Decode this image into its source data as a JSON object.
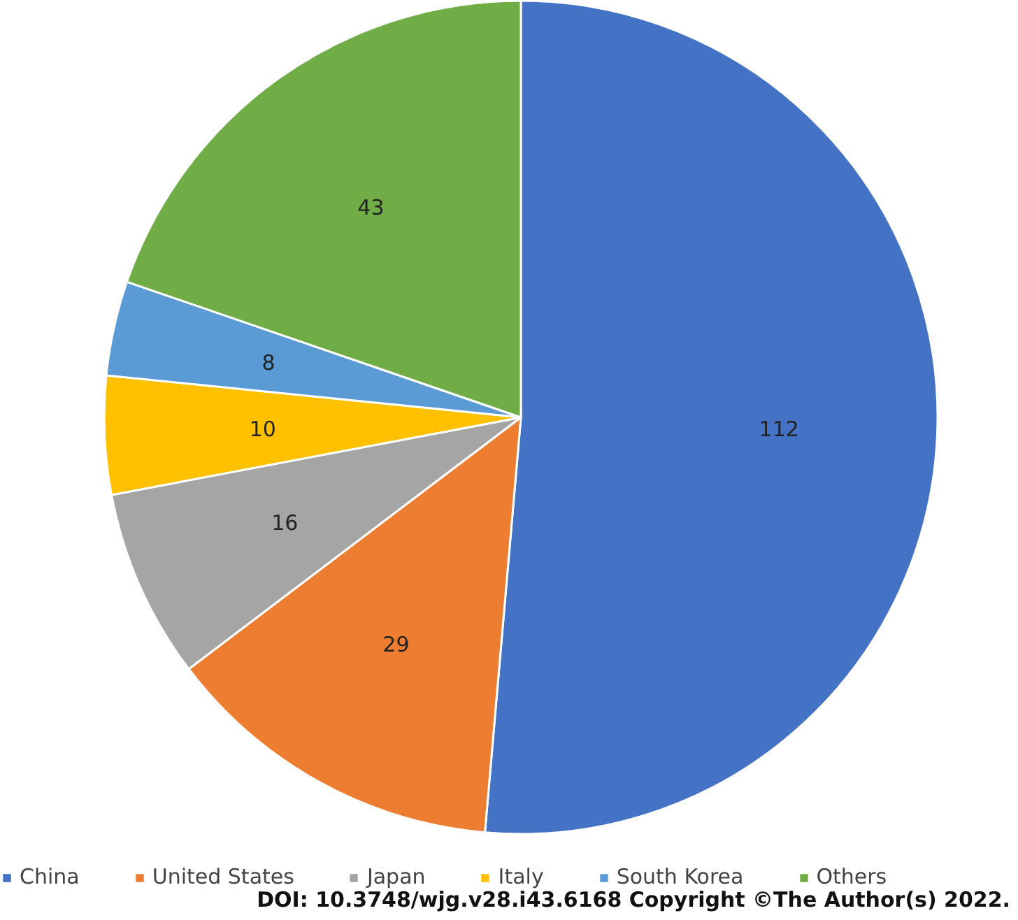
{
  "chart_data": {
    "type": "pie",
    "categories": [
      "China",
      "United States",
      "Japan",
      "Italy",
      "South Korea",
      "Others"
    ],
    "values": [
      112,
      29,
      16,
      10,
      8,
      43
    ],
    "colors": [
      "#4472c4",
      "#ed7d31",
      "#a5a5a5",
      "#ffc000",
      "#5b9bd5",
      "#70ad47"
    ],
    "data_labels": true,
    "legend": "bottom",
    "annotations": [
      "DOI: 10.3748/wjg.v28.i43.6168 Copyright ©The Author(s) 2022."
    ]
  }
}
